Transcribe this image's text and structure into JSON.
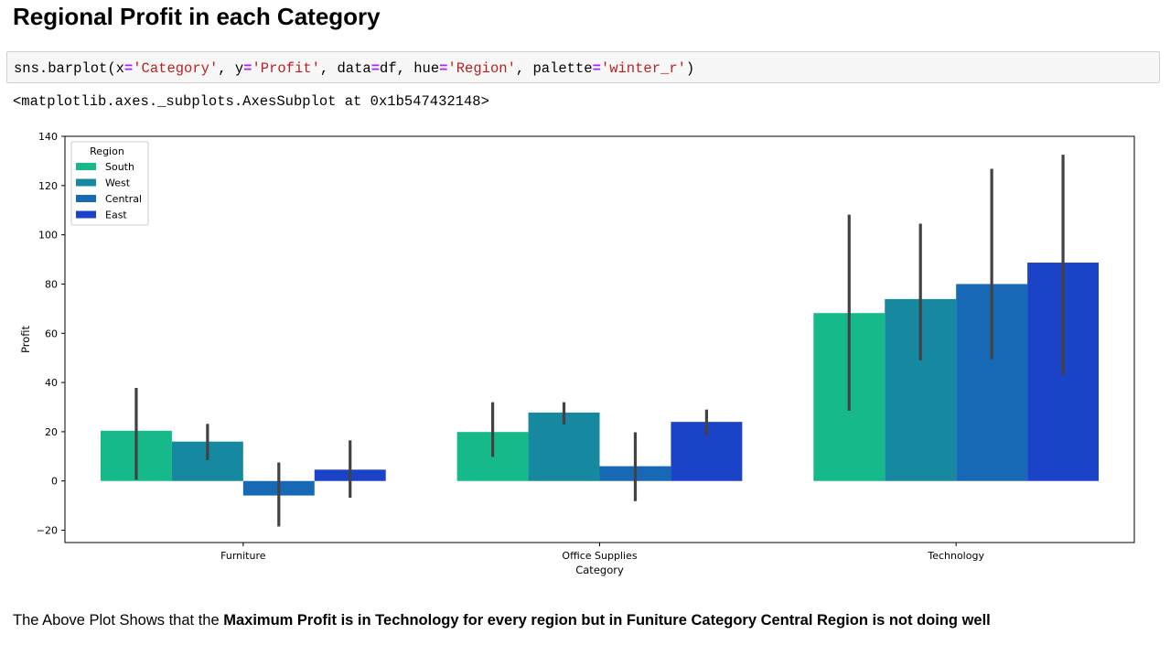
{
  "heading": "Regional Profit in each Category",
  "code": {
    "parts": [
      {
        "t": "sns.barplot(x",
        "c": "plain"
      },
      {
        "t": "=",
        "c": "kw"
      },
      {
        "t": "'Category'",
        "c": "str"
      },
      {
        "t": ", y",
        "c": "plain"
      },
      {
        "t": "=",
        "c": "kw"
      },
      {
        "t": "'Profit'",
        "c": "str"
      },
      {
        "t": ", data",
        "c": "plain"
      },
      {
        "t": "=",
        "c": "kw"
      },
      {
        "t": "df, hue",
        "c": "plain"
      },
      {
        "t": "=",
        "c": "kw"
      },
      {
        "t": "'Region'",
        "c": "str"
      },
      {
        "t": ", palette",
        "c": "plain"
      },
      {
        "t": "=",
        "c": "kw"
      },
      {
        "t": "'winter_r'",
        "c": "str"
      },
      {
        "t": ")",
        "c": "plain"
      }
    ]
  },
  "output_text": "<matplotlib.axes._subplots.AxesSubplot at 0x1b547432148>",
  "chart_data": {
    "type": "bar",
    "categories": [
      "Furniture",
      "Office Supplies",
      "Technology"
    ],
    "xlabel": "Category",
    "ylabel": "Profit",
    "ylim": [
      -25,
      140
    ],
    "yticks": [
      -20,
      0,
      20,
      40,
      60,
      80,
      100,
      120,
      140
    ],
    "legend_title": "Region",
    "legend_position": "top-left",
    "grid": false,
    "series": [
      {
        "name": "South",
        "color": "#15b98a",
        "values": [
          20.4,
          19.9,
          68.2
        ],
        "ci_low": [
          0.5,
          9.8,
          28.5
        ],
        "ci_high": [
          37.8,
          32.0,
          108.2
        ]
      },
      {
        "name": "West",
        "color": "#1688a0",
        "values": [
          16.0,
          27.8,
          73.9
        ],
        "ci_low": [
          8.5,
          23.0,
          49.0
        ],
        "ci_high": [
          23.2,
          32.0,
          104.5
        ]
      },
      {
        "name": "Central",
        "color": "#1869b5",
        "values": [
          -5.9,
          6.0,
          80.0
        ],
        "ci_low": [
          -18.5,
          -8.2,
          49.5
        ],
        "ci_high": [
          7.5,
          19.8,
          126.8
        ]
      },
      {
        "name": "East",
        "color": "#1a43c8",
        "values": [
          4.6,
          24.0,
          88.7
        ],
        "ci_low": [
          -6.8,
          18.5,
          43.0
        ],
        "ci_high": [
          16.5,
          29.0,
          132.5
        ]
      }
    ]
  },
  "conclusion": {
    "normal": "The Above Plot Shows that the ",
    "bold": "Maximum Profit is in Technology for every region but in Funiture Category Central Region is not doing well"
  }
}
